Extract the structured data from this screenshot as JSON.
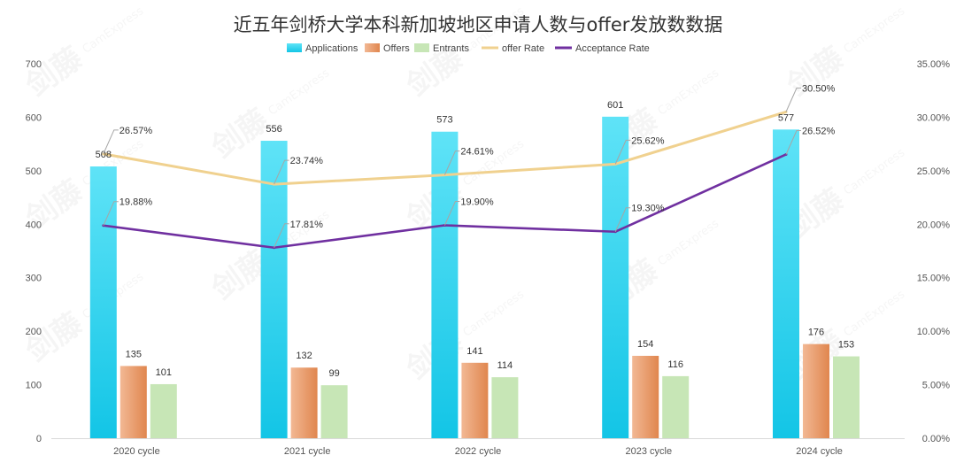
{
  "chart_data": {
    "type": "bar",
    "title": "近五年剑桥大学本科新加坡地区申请人数与offer发放数数据",
    "categories": [
      "2020 cycle",
      "2021 cycle",
      "2022 cycle",
      "2023 cycle",
      "2024 cycle"
    ],
    "series": [
      {
        "name": "Applications",
        "type": "bar",
        "axis": "left",
        "values": [
          508,
          556,
          573,
          601,
          577
        ],
        "color_top": "#5FE3F7",
        "color_bottom": "#13C5E6"
      },
      {
        "name": "Offers",
        "type": "bar",
        "axis": "left",
        "values": [
          135,
          132,
          141,
          154,
          176
        ],
        "color_top": "#F2B894",
        "color_bottom": "#E0864E"
      },
      {
        "name": "Entrants",
        "type": "bar",
        "axis": "left",
        "values": [
          101,
          99,
          114,
          116,
          153
        ],
        "color_top": "#C7E6B6",
        "color_bottom": "#C7E6B6"
      },
      {
        "name": "offer Rate",
        "type": "line",
        "axis": "right",
        "values": [
          26.57,
          23.74,
          24.61,
          25.62,
          30.5
        ],
        "labels": [
          "26.57%",
          "23.74%",
          "24.61%",
          "25.62%",
          "30.50%"
        ],
        "color": "#F0D18F"
      },
      {
        "name": "Acceptance Rate",
        "type": "line",
        "axis": "right",
        "values": [
          19.88,
          17.81,
          19.9,
          19.3,
          26.52
        ],
        "labels": [
          "19.88%",
          "17.81%",
          "19.90%",
          "19.30%",
          "26.52%"
        ],
        "color": "#7030A0"
      }
    ],
    "y_left": {
      "ylim": [
        0,
        700
      ],
      "ticks": [
        "0",
        "100",
        "200",
        "300",
        "400",
        "500",
        "600",
        "700"
      ]
    },
    "y_right": {
      "ylim": [
        0,
        35
      ],
      "ticks": [
        "0.00%",
        "5.00%",
        "10.00%",
        "15.00%",
        "20.00%",
        "25.00%",
        "30.00%",
        "35.00%"
      ]
    },
    "legend_position": "top",
    "grid": false
  },
  "watermark": {
    "logo_text": "剑藤",
    "brand_text": "CamExpress"
  }
}
